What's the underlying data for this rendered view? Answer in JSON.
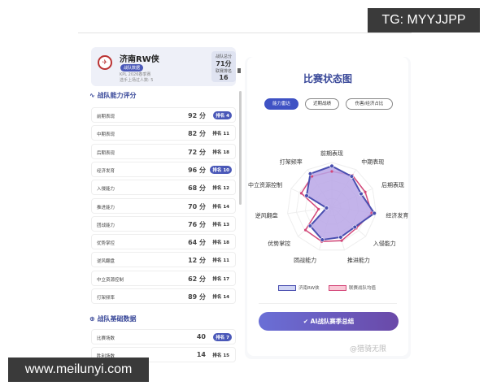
{
  "overlay": {
    "tg": "TG: MYYJJPP",
    "site": "www.meilunyi.com",
    "weibo": "@猎骑无限"
  },
  "team": {
    "name": "济南RW侠",
    "badge": "战队数据",
    "season": "KPL 2026春季赛",
    "players": "选手上场过人数: 5",
    "score_label": "战队总分",
    "score": "71分",
    "rank_label": "联赛排名",
    "rank": "16"
  },
  "abilities": {
    "title": "战队能力评分",
    "items": [
      {
        "label": "前期表现",
        "score": "92 分",
        "rank": "排名 4",
        "hi": true
      },
      {
        "label": "中期表现",
        "score": "82 分",
        "rank": "排名 11",
        "hi": false
      },
      {
        "label": "后期表现",
        "score": "72 分",
        "rank": "排名 18",
        "hi": false
      },
      {
        "label": "经济发育",
        "score": "96 分",
        "rank": "排名 10",
        "hi": true
      },
      {
        "label": "入侵能力",
        "score": "68 分",
        "rank": "排名 12",
        "hi": false
      },
      {
        "label": "推进能力",
        "score": "70 分",
        "rank": "排名 14",
        "hi": false
      },
      {
        "label": "团战能力",
        "score": "76 分",
        "rank": "排名 13",
        "hi": false
      },
      {
        "label": "优势掌控",
        "score": "64 分",
        "rank": "排名 18",
        "hi": false
      },
      {
        "label": "逆风翻盘",
        "score": "12 分",
        "rank": "排名 11",
        "hi": false
      },
      {
        "label": "中立资源控制",
        "score": "62 分",
        "rank": "排名 17",
        "hi": false
      },
      {
        "label": "打架频率",
        "score": "89 分",
        "rank": "排名 14",
        "hi": false
      }
    ]
  },
  "basic": {
    "title": "战队基础数据",
    "items": [
      {
        "label": "比赛场数",
        "score": "40",
        "rank": "排名 7",
        "hi": true
      },
      {
        "label": "胜利场数",
        "score": "14",
        "rank": "排名 15",
        "hi": false
      }
    ]
  },
  "panel": {
    "title": "比赛状态图",
    "tabs": [
      "能力雷达",
      "近期战绩",
      "伤害/经济占比"
    ],
    "active_tab": 0,
    "ai_button": "AI战队赛季总结"
  },
  "chart_data": {
    "type": "radar",
    "range": [
      0,
      100
    ],
    "axes": [
      "前期表现",
      "中期表现",
      "后期表现",
      "经济发育",
      "入侵能力",
      "推进能力",
      "团战能力",
      "优势掌控",
      "逆风翻盘",
      "中立资源控制",
      "打架频率"
    ],
    "series": [
      {
        "name": "济南RW侠",
        "color": "#4a4fb0",
        "fill": "#b9a6e6",
        "values": [
          92,
          82,
          72,
          96,
          68,
          70,
          76,
          64,
          12,
          62,
          89
        ]
      },
      {
        "name": "联赛战队均值",
        "color": "#d4487a",
        "values": [
          80,
          85,
          82,
          90,
          72,
          78,
          80,
          78,
          30,
          75,
          82
        ]
      }
    ]
  }
}
